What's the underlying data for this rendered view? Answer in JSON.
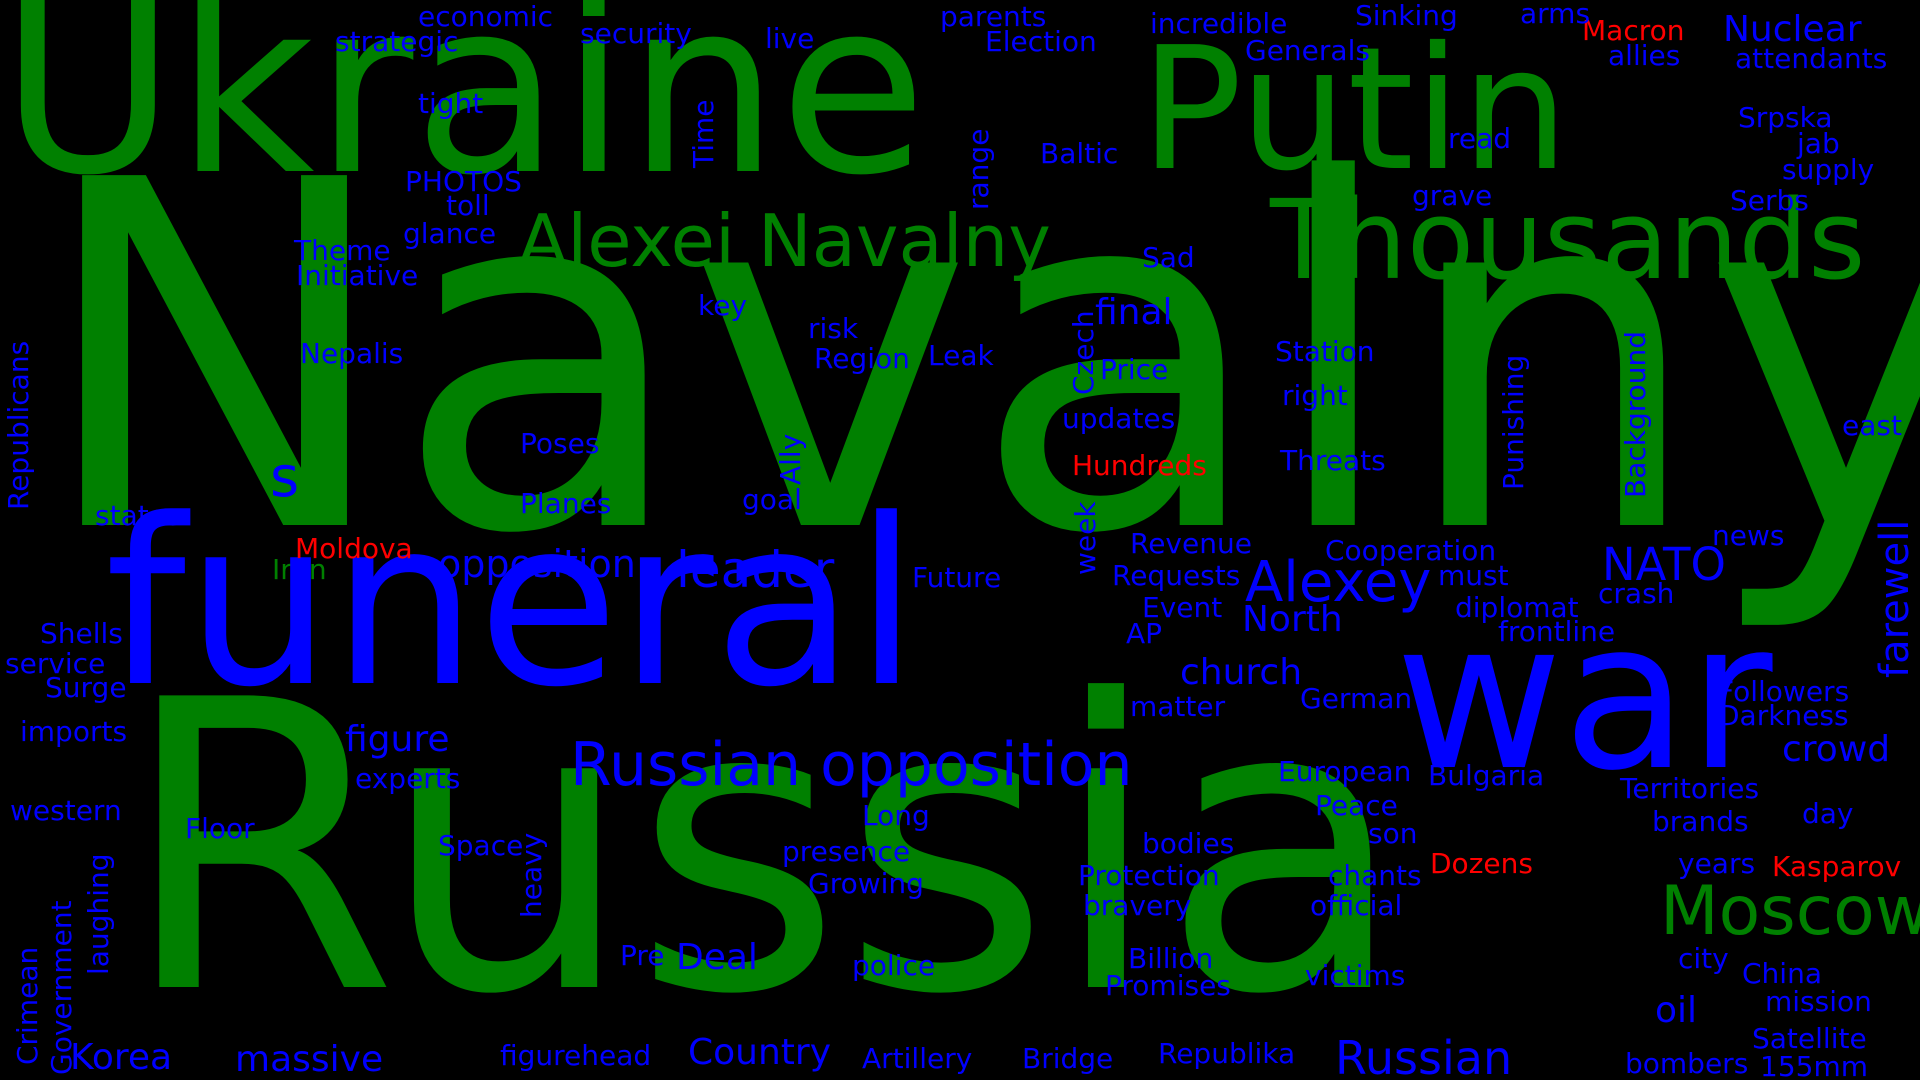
{
  "colors": {
    "green": "#008000",
    "blue": "#0000ff",
    "red": "#ff0000",
    "background": "#000000"
  },
  "words": {
    "navalny": "Navalny",
    "russia": "Russia",
    "ukraine": "Ukraine",
    "putin": "Putin",
    "funeral": "funeral",
    "war": "war",
    "thousands": "Thousands",
    "alexei_navalny": "Alexei Navalny",
    "russian_opposition": "Russian opposition",
    "moscow": "Moscow",
    "alexey": "Alexey",
    "russian": "Russian",
    "leader": "leader",
    "opposition": "opposition",
    "nato": "NATO",
    "nuclear": "Nuclear",
    "church": "church",
    "country": "Country",
    "figure": "figure",
    "korea": "Korea",
    "massive": "massive",
    "deal": "Deal",
    "crowd": "crowd",
    "oil": "oil",
    "farewell": "farewell",
    "north": "North",
    "final": "final",
    "s": "s",
    "economic": "economic",
    "strategic": "strategic",
    "security": "security",
    "live": "live",
    "parents": "parents",
    "election": "Election",
    "incredible": "incredible",
    "generals": "Generals",
    "sinking": "Sinking",
    "arms": "arms",
    "macron": "Macron",
    "allies": "allies",
    "attendants": "attendants",
    "tight": "tight",
    "time": "Time",
    "read": "read",
    "srpska": "Srpska",
    "jab": "jab",
    "supply": "supply",
    "photos": "PHOTOS",
    "toll": "toll",
    "range": "range",
    "baltic": "Baltic",
    "grave": "grave",
    "serbs": "Serbs",
    "glance": "glance",
    "theme": "Theme",
    "initiative": "Initiative",
    "sad": "Sad",
    "key": "key",
    "risk": "risk",
    "region": "Region",
    "leak": "Leak",
    "czech": "Czech",
    "price": "Price",
    "station": "Station",
    "punishing": "Punishing",
    "background": "Background",
    "east": "east",
    "republicans": "Republicans",
    "nepalis": "Nepalis",
    "right": "right",
    "updates": "updates",
    "poses": "Poses",
    "ally": "Ally",
    "hundreds": "Hundreds",
    "threats": "Threats",
    "states": "states",
    "planes": "Planes",
    "goal": "goal",
    "week": "week",
    "revenue": "Revenue",
    "cooperation": "Cooperation",
    "news": "news",
    "moldova": "Moldova",
    "iran": "Iran",
    "future": "Future",
    "requests": "Requests",
    "must": "must",
    "crash": "crash",
    "event": "Event",
    "diplomat": "diplomat",
    "shells": "Shells",
    "ap": "AP",
    "frontline": "frontline",
    "service": "service",
    "surge": "Surge",
    "matter": "matter",
    "german": "German",
    "followers": "Followers",
    "darkness": "Darkness",
    "imports": "imports",
    "experts": "experts",
    "european": "European",
    "bulgaria": "Bulgaria",
    "territories": "Territories",
    "western": "western",
    "long": "Long",
    "peace": "Peace",
    "brands": "brands",
    "day": "day",
    "floor": "Floor",
    "space": "Space",
    "heavy": "heavy",
    "presence": "presence",
    "bodies": "bodies",
    "son": "son",
    "dozens": "Dozens",
    "years": "years",
    "kasparov": "Kasparov",
    "laughing": "laughing",
    "growing": "Growing",
    "protection": "Protection",
    "chants": "chants",
    "bravery": "bravery",
    "official": "official",
    "government": "Government",
    "crimean": "Crimean",
    "pre": "Pre",
    "police": "police",
    "billion": "Billion",
    "victims": "victims",
    "city": "city",
    "china": "China",
    "promises": "Promises",
    "mission": "mission",
    "figurehead": "figurehead",
    "artillery": "Artillery",
    "bridge": "Bridge",
    "republika": "Republika",
    "satellite": "Satellite",
    "bombers": "bombers",
    "mm155": "155mm"
  }
}
